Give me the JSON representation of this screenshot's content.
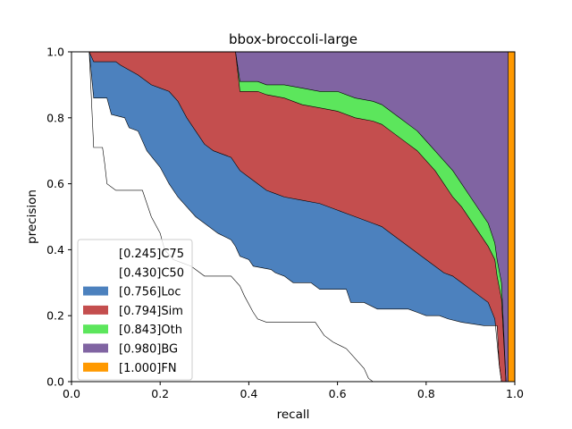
{
  "chart_data": {
    "type": "area",
    "title": "bbox-broccoli-large",
    "xlabel": "recall",
    "ylabel": "precision",
    "xlim": [
      0.0,
      1.0
    ],
    "ylim": [
      0.0,
      1.0
    ],
    "xticks": [
      "0.0",
      "0.2",
      "0.4",
      "0.6",
      "0.8",
      "1.0"
    ],
    "yticks": [
      "0.0",
      "0.2",
      "0.4",
      "0.6",
      "0.8",
      "1.0"
    ],
    "grid": false,
    "legend_position": "lower-left",
    "series": [
      {
        "name": "[0.245]C75",
        "color": "#ffffff",
        "points": [
          [
            0.0,
            1.0
          ],
          [
            0.04,
            1.0
          ],
          [
            0.05,
            0.71
          ],
          [
            0.07,
            0.71
          ],
          [
            0.075,
            0.66
          ],
          [
            0.08,
            0.6
          ],
          [
            0.1,
            0.58
          ],
          [
            0.16,
            0.58
          ],
          [
            0.17,
            0.54
          ],
          [
            0.18,
            0.5
          ],
          [
            0.2,
            0.45
          ],
          [
            0.21,
            0.4
          ],
          [
            0.23,
            0.37
          ],
          [
            0.25,
            0.36
          ],
          [
            0.27,
            0.35
          ],
          [
            0.3,
            0.32
          ],
          [
            0.36,
            0.32
          ],
          [
            0.38,
            0.29
          ],
          [
            0.39,
            0.26
          ],
          [
            0.41,
            0.21
          ],
          [
            0.42,
            0.19
          ],
          [
            0.44,
            0.18
          ],
          [
            0.55,
            0.18
          ],
          [
            0.57,
            0.14
          ],
          [
            0.59,
            0.12
          ],
          [
            0.62,
            0.1
          ],
          [
            0.64,
            0.07
          ],
          [
            0.66,
            0.04
          ],
          [
            0.67,
            0.01
          ],
          [
            0.68,
            0.0
          ],
          [
            1.0,
            0.0
          ]
        ]
      },
      {
        "name": "[0.430]C50",
        "color": "#ffffff",
        "points": [
          [
            0.0,
            1.0
          ],
          [
            0.04,
            1.0
          ],
          [
            0.05,
            0.86
          ],
          [
            0.08,
            0.86
          ],
          [
            0.09,
            0.81
          ],
          [
            0.12,
            0.8
          ],
          [
            0.13,
            0.77
          ],
          [
            0.15,
            0.76
          ],
          [
            0.17,
            0.7
          ],
          [
            0.2,
            0.65
          ],
          [
            0.22,
            0.6
          ],
          [
            0.24,
            0.56
          ],
          [
            0.26,
            0.53
          ],
          [
            0.28,
            0.5
          ],
          [
            0.3,
            0.48
          ],
          [
            0.33,
            0.45
          ],
          [
            0.36,
            0.43
          ],
          [
            0.37,
            0.41
          ],
          [
            0.38,
            0.38
          ],
          [
            0.4,
            0.37
          ],
          [
            0.41,
            0.35
          ],
          [
            0.45,
            0.34
          ],
          [
            0.46,
            0.33
          ],
          [
            0.48,
            0.32
          ],
          [
            0.5,
            0.3
          ],
          [
            0.54,
            0.3
          ],
          [
            0.55,
            0.29
          ],
          [
            0.56,
            0.28
          ],
          [
            0.62,
            0.28
          ],
          [
            0.63,
            0.24
          ],
          [
            0.66,
            0.24
          ],
          [
            0.69,
            0.22
          ],
          [
            0.76,
            0.22
          ],
          [
            0.78,
            0.21
          ],
          [
            0.8,
            0.2
          ],
          [
            0.83,
            0.2
          ],
          [
            0.85,
            0.19
          ],
          [
            0.88,
            0.18
          ],
          [
            0.93,
            0.17
          ],
          [
            0.96,
            0.17
          ],
          [
            0.965,
            0.05
          ],
          [
            0.97,
            0.0
          ],
          [
            1.0,
            0.0
          ]
        ]
      },
      {
        "name": "[0.756]Loc",
        "color": "#4c81be",
        "points": [
          [
            0.0,
            1.0
          ],
          [
            0.04,
            1.0
          ],
          [
            0.05,
            0.97
          ],
          [
            0.1,
            0.97
          ],
          [
            0.11,
            0.96
          ],
          [
            0.15,
            0.93
          ],
          [
            0.18,
            0.9
          ],
          [
            0.2,
            0.89
          ],
          [
            0.22,
            0.88
          ],
          [
            0.24,
            0.85
          ],
          [
            0.26,
            0.8
          ],
          [
            0.28,
            0.76
          ],
          [
            0.3,
            0.72
          ],
          [
            0.32,
            0.7
          ],
          [
            0.36,
            0.68
          ],
          [
            0.38,
            0.64
          ],
          [
            0.4,
            0.62
          ],
          [
            0.42,
            0.6
          ],
          [
            0.44,
            0.58
          ],
          [
            0.46,
            0.57
          ],
          [
            0.48,
            0.56
          ],
          [
            0.52,
            0.55
          ],
          [
            0.56,
            0.54
          ],
          [
            0.6,
            0.52
          ],
          [
            0.64,
            0.5
          ],
          [
            0.68,
            0.48
          ],
          [
            0.7,
            0.47
          ],
          [
            0.72,
            0.45
          ],
          [
            0.74,
            0.43
          ],
          [
            0.76,
            0.41
          ],
          [
            0.78,
            0.39
          ],
          [
            0.8,
            0.37
          ],
          [
            0.82,
            0.35
          ],
          [
            0.84,
            0.33
          ],
          [
            0.86,
            0.32
          ],
          [
            0.88,
            0.3
          ],
          [
            0.9,
            0.28
          ],
          [
            0.92,
            0.26
          ],
          [
            0.94,
            0.24
          ],
          [
            0.955,
            0.19
          ],
          [
            0.96,
            0.12
          ],
          [
            0.965,
            0.05
          ],
          [
            0.97,
            0.0
          ],
          [
            1.0,
            0.0
          ]
        ]
      },
      {
        "name": "[0.794]Sim",
        "color": "#c44e4e",
        "points": [
          [
            0.0,
            1.0
          ],
          [
            0.13,
            1.0
          ],
          [
            0.14,
            1.0
          ],
          [
            0.37,
            1.0
          ],
          [
            0.38,
            0.88
          ],
          [
            0.42,
            0.88
          ],
          [
            0.44,
            0.87
          ],
          [
            0.48,
            0.86
          ],
          [
            0.52,
            0.84
          ],
          [
            0.56,
            0.83
          ],
          [
            0.6,
            0.82
          ],
          [
            0.64,
            0.8
          ],
          [
            0.68,
            0.79
          ],
          [
            0.7,
            0.78
          ],
          [
            0.72,
            0.76
          ],
          [
            0.74,
            0.74
          ],
          [
            0.76,
            0.72
          ],
          [
            0.78,
            0.7
          ],
          [
            0.8,
            0.67
          ],
          [
            0.82,
            0.64
          ],
          [
            0.84,
            0.6
          ],
          [
            0.86,
            0.56
          ],
          [
            0.88,
            0.53
          ],
          [
            0.9,
            0.49
          ],
          [
            0.92,
            0.45
          ],
          [
            0.94,
            0.41
          ],
          [
            0.955,
            0.37
          ],
          [
            0.96,
            0.32
          ],
          [
            0.97,
            0.25
          ],
          [
            0.98,
            0.0
          ],
          [
            1.0,
            0.0
          ]
        ]
      },
      {
        "name": "[0.843]Oth",
        "color": "#5ce65c",
        "points": [
          [
            0.0,
            1.0
          ],
          [
            0.37,
            1.0
          ],
          [
            0.38,
            0.91
          ],
          [
            0.42,
            0.91
          ],
          [
            0.44,
            0.9
          ],
          [
            0.48,
            0.9
          ],
          [
            0.52,
            0.89
          ],
          [
            0.56,
            0.88
          ],
          [
            0.6,
            0.88
          ],
          [
            0.64,
            0.86
          ],
          [
            0.68,
            0.85
          ],
          [
            0.7,
            0.84
          ],
          [
            0.72,
            0.82
          ],
          [
            0.74,
            0.8
          ],
          [
            0.76,
            0.78
          ],
          [
            0.78,
            0.76
          ],
          [
            0.8,
            0.73
          ],
          [
            0.82,
            0.7
          ],
          [
            0.84,
            0.67
          ],
          [
            0.86,
            0.64
          ],
          [
            0.88,
            0.6
          ],
          [
            0.9,
            0.56
          ],
          [
            0.92,
            0.52
          ],
          [
            0.94,
            0.48
          ],
          [
            0.955,
            0.42
          ],
          [
            0.96,
            0.37
          ],
          [
            0.97,
            0.3
          ],
          [
            0.98,
            0.0
          ],
          [
            1.0,
            0.0
          ]
        ]
      },
      {
        "name": "[0.980]BG",
        "color": "#8064a2",
        "points": [
          [
            0.0,
            1.0
          ],
          [
            0.985,
            1.0
          ],
          [
            0.985,
            0.0
          ],
          [
            1.0,
            0.0
          ]
        ]
      },
      {
        "name": "[1.000]FN",
        "color": "#ff9900",
        "points": [
          [
            0.0,
            1.0
          ],
          [
            1.0,
            1.0
          ],
          [
            1.0,
            0.0
          ]
        ]
      }
    ]
  }
}
